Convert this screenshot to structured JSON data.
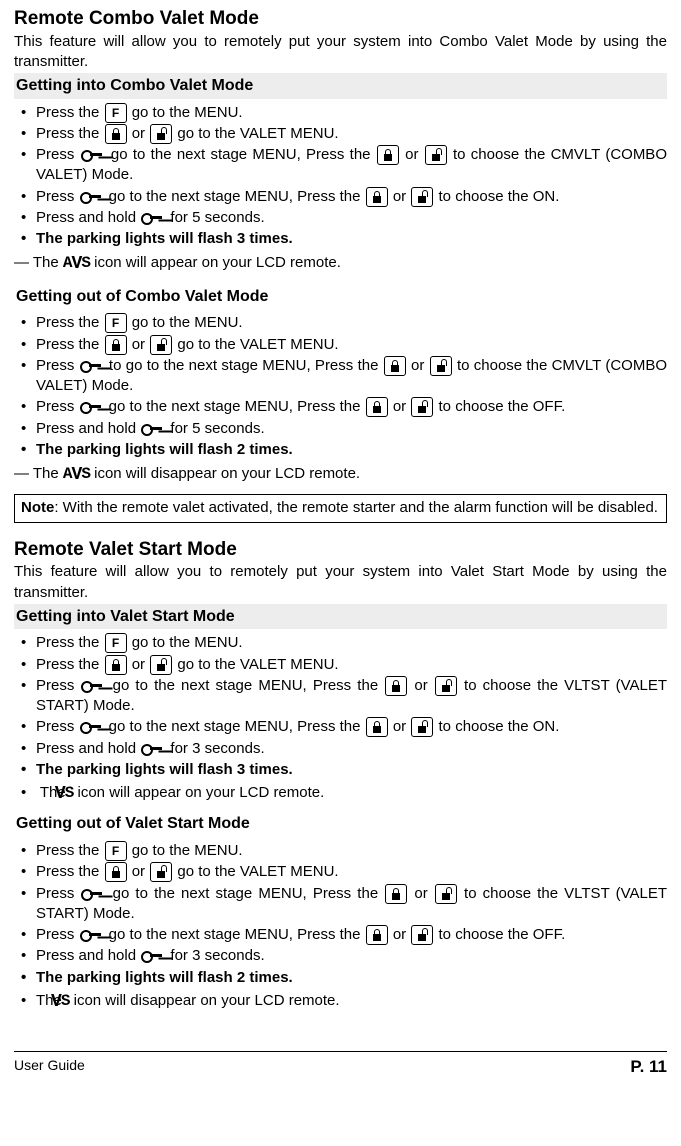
{
  "title1": "Remote Combo Valet Mode",
  "intro1": "This feature will allow you to remotely put your system into Combo Valet Mode by using the transmitter.",
  "sub1a": "Getting into Combo Valet Mode",
  "s1a": [
    "Press the |F| go to the MENU.",
    "Press the |L| or  |U| go to the VALET MENU.",
    "Press  |K| go to the next stage MENU, Press the |L| or  |U| to choose the CMVLT (COMBO VALET) Mode.",
    "Press  |K| go to the next stage MENU, Press the |L| or |U| to choose the ON.",
    "Press and hold  |K| for 5 seconds.",
    "**The parking lights will flash 3 times.**"
  ],
  "dash1a": "— The |AVS| icon will appear on your LCD remote.",
  "sub1b": "Getting out of Combo Valet Mode",
  "s1b": [
    "Press the |F| go to the MENU.",
    "Press the |L| or |U| go to the VALET MENU.",
    "Press |K| to go to the next stage MENU, Press the |L| or |U| to choose the CMVLT (COMBO VALET) Mode.",
    "Press  |K| go to the next stage MENU, Press the |L| or  |U| to choose the OFF.",
    "Press and hold  |K| for 5 seconds.",
    "**The parking lights will flash 2 times.**"
  ],
  "dash1b": "— The |AVS| icon will disappear on your LCD remote.",
  "note": "Note: With the remote valet activated, the remote starter and the alarm function will be disabled.",
  "title2": "Remote Valet Start Mode",
  "intro2": "This feature will allow you to remotely put your system into Valet Start Mode by using the transmitter.",
  "sub2a": "Getting into Valet Start Mode",
  "s2a": [
    "Press the |F| go to the MENU.",
    "Press the |L| or |U| go to the VALET MENU.",
    "Press  |K| go to the next stage MENU, Press the |L| or  |U| to choose the VLTST (VALET START) Mode.",
    "Press  |K| go to the next stage MENU, Press the |L| or |U| to choose the ON.",
    "Press and hold  |K| for 3 seconds.",
    "**The parking lights will flash 3 times.**",
    " The |VS| icon will appear on your LCD remote."
  ],
  "sub2b": "Getting out of Valet Start Mode",
  "s2b": [
    "Press the |F| go to the MENU.",
    "Press the |L| or  |U| go to the VALET MENU.",
    "Press  |K| go to the next stage MENU, Press the |L| or  |U| to choose the VLTST (VALET START) Mode.",
    "Press  |K| go to the next stage MENU, Press  the |L| or |U| to choose the OFF.",
    "Press and hold  |K| for 3 seconds.",
    "**The parking lights will flash 2 times.**",
    "The |VS| icon will disappear on your LCD remote."
  ],
  "footer_left": "User Guide",
  "footer_right": "P. 11",
  "note_label": "Note"
}
